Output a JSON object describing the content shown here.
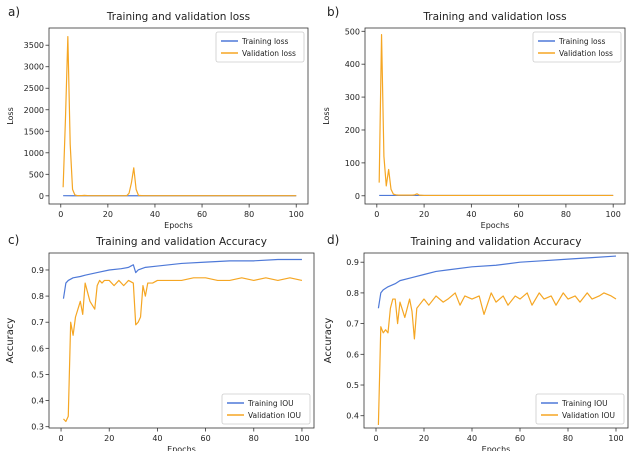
{
  "colors": {
    "training": "#4e79d8",
    "validation": "#f5a623",
    "axis": "#333333"
  },
  "chart_data": [
    {
      "type": "line",
      "panel_label": "a)",
      "title": "Training and validation loss",
      "xlabel": "Epochs",
      "ylabel": "Loss",
      "xlim": [
        -5,
        105
      ],
      "ylim": [
        -190,
        3900
      ],
      "xticks": [
        0,
        20,
        40,
        60,
        80,
        100
      ],
      "yticks": [
        0,
        500,
        1000,
        1500,
        2000,
        2500,
        3000,
        3500
      ],
      "legend_position": "top-right",
      "grid": false,
      "series": [
        {
          "name": "Training loss",
          "color_key": "training",
          "x": [
            1,
            5,
            10,
            20,
            29,
            30,
            31,
            32,
            40,
            60,
            80,
            100
          ],
          "y": [
            3,
            2,
            1,
            1,
            1,
            1,
            2,
            1,
            1,
            1,
            1,
            1
          ]
        },
        {
          "name": "Validation loss",
          "color_key": "validation",
          "x": [
            1,
            2,
            3,
            4,
            5,
            6,
            7,
            8,
            9,
            10,
            12,
            15,
            20,
            25,
            28,
            29,
            30,
            31,
            32,
            33,
            35,
            40,
            50,
            60,
            70,
            80,
            90,
            100
          ],
          "y": [
            200,
            1800,
            3700,
            1200,
            150,
            20,
            5,
            5,
            5,
            10,
            3,
            3,
            3,
            3,
            3,
            60,
            300,
            650,
            150,
            10,
            3,
            3,
            3,
            3,
            3,
            3,
            3,
            3
          ]
        }
      ]
    },
    {
      "type": "line",
      "panel_label": "b)",
      "title": "Training and validation loss",
      "xlabel": "Epochs",
      "ylabel": "Loss",
      "xlim": [
        -5,
        105
      ],
      "ylim": [
        -25,
        510
      ],
      "xticks": [
        0,
        20,
        40,
        60,
        80,
        100
      ],
      "yticks": [
        0,
        100,
        200,
        300,
        400,
        500
      ],
      "legend_position": "top-right",
      "grid": false,
      "series": [
        {
          "name": "Training loss",
          "color_key": "training",
          "x": [
            1,
            5,
            10,
            20,
            40,
            60,
            80,
            100
          ],
          "y": [
            1,
            1,
            1,
            1,
            1,
            1,
            1,
            1
          ]
        },
        {
          "name": "Validation loss",
          "color_key": "validation",
          "x": [
            1,
            2,
            3,
            4,
            5,
            6,
            7,
            8,
            9,
            10,
            15,
            16,
            17,
            18,
            20,
            40,
            60,
            80,
            100
          ],
          "y": [
            40,
            490,
            120,
            30,
            80,
            20,
            5,
            3,
            2,
            2,
            2,
            3,
            6,
            2,
            1,
            1,
            1,
            1,
            1
          ]
        }
      ]
    },
    {
      "type": "line",
      "panel_label": "c)",
      "title": "Training and validation Accuracy",
      "xlabel": "Epochs",
      "ylabel": "Accuracy",
      "xlim": [
        -5,
        105
      ],
      "ylim": [
        0.295,
        0.965
      ],
      "xticks": [
        0,
        20,
        40,
        60,
        80,
        100
      ],
      "yticks": [
        0.3,
        0.4,
        0.5,
        0.6,
        0.7,
        0.8,
        0.9
      ],
      "legend_position": "bottom-right",
      "grid": false,
      "series": [
        {
          "name": "Training IOU",
          "color_key": "training",
          "x": [
            1,
            2,
            3,
            5,
            8,
            10,
            15,
            20,
            25,
            28,
            29,
            30,
            31,
            32,
            35,
            40,
            50,
            60,
            70,
            80,
            90,
            100
          ],
          "y": [
            0.79,
            0.85,
            0.86,
            0.87,
            0.875,
            0.88,
            0.89,
            0.9,
            0.905,
            0.91,
            0.915,
            0.92,
            0.89,
            0.9,
            0.91,
            0.915,
            0.925,
            0.93,
            0.935,
            0.935,
            0.94,
            0.94
          ]
        },
        {
          "name": "Validation IOU",
          "color_key": "validation",
          "x": [
            1,
            2,
            3,
            4,
            5,
            6,
            7,
            8,
            9,
            10,
            12,
            14,
            15,
            16,
            17,
            18,
            20,
            22,
            24,
            26,
            28,
            30,
            31,
            32,
            33,
            34,
            35,
            36,
            38,
            40,
            45,
            50,
            55,
            60,
            65,
            70,
            75,
            80,
            85,
            90,
            95,
            100
          ],
          "y": [
            0.33,
            0.32,
            0.34,
            0.7,
            0.65,
            0.72,
            0.75,
            0.78,
            0.73,
            0.85,
            0.78,
            0.75,
            0.84,
            0.86,
            0.85,
            0.86,
            0.86,
            0.84,
            0.86,
            0.84,
            0.86,
            0.85,
            0.69,
            0.7,
            0.72,
            0.84,
            0.8,
            0.85,
            0.85,
            0.86,
            0.86,
            0.86,
            0.87,
            0.87,
            0.86,
            0.86,
            0.87,
            0.86,
            0.87,
            0.86,
            0.87,
            0.86
          ]
        }
      ]
    },
    {
      "type": "line",
      "panel_label": "d)",
      "title": "Training and validation Accuracy",
      "xlabel": "Epochs",
      "ylabel": "Accuracy",
      "xlim": [
        -5,
        105
      ],
      "ylim": [
        0.36,
        0.93
      ],
      "xticks": [
        0,
        20,
        40,
        60,
        80,
        100
      ],
      "yticks": [
        0.4,
        0.5,
        0.6,
        0.7,
        0.8,
        0.9
      ],
      "legend_position": "bottom-right",
      "grid": false,
      "series": [
        {
          "name": "Training IOU",
          "color_key": "training",
          "x": [
            1,
            2,
            3,
            5,
            8,
            10,
            15,
            20,
            25,
            30,
            40,
            50,
            60,
            70,
            80,
            90,
            100
          ],
          "y": [
            0.75,
            0.8,
            0.81,
            0.82,
            0.83,
            0.84,
            0.85,
            0.86,
            0.87,
            0.875,
            0.885,
            0.89,
            0.9,
            0.905,
            0.91,
            0.915,
            0.92
          ]
        },
        {
          "name": "Validation IOU",
          "color_key": "validation",
          "x": [
            1,
            2,
            3,
            4,
            5,
            6,
            7,
            8,
            9,
            10,
            12,
            14,
            15,
            16,
            17,
            18,
            20,
            22,
            25,
            28,
            30,
            33,
            35,
            37,
            40,
            43,
            45,
            48,
            50,
            53,
            55,
            58,
            60,
            63,
            65,
            68,
            70,
            73,
            75,
            78,
            80,
            83,
            85,
            88,
            90,
            93,
            95,
            98,
            100
          ],
          "y": [
            0.37,
            0.69,
            0.67,
            0.68,
            0.67,
            0.75,
            0.78,
            0.78,
            0.7,
            0.77,
            0.72,
            0.78,
            0.74,
            0.65,
            0.75,
            0.76,
            0.78,
            0.76,
            0.79,
            0.77,
            0.78,
            0.8,
            0.76,
            0.79,
            0.78,
            0.79,
            0.73,
            0.8,
            0.77,
            0.79,
            0.76,
            0.79,
            0.78,
            0.8,
            0.76,
            0.8,
            0.78,
            0.79,
            0.76,
            0.8,
            0.78,
            0.79,
            0.77,
            0.8,
            0.78,
            0.79,
            0.8,
            0.79,
            0.78
          ]
        }
      ]
    }
  ]
}
